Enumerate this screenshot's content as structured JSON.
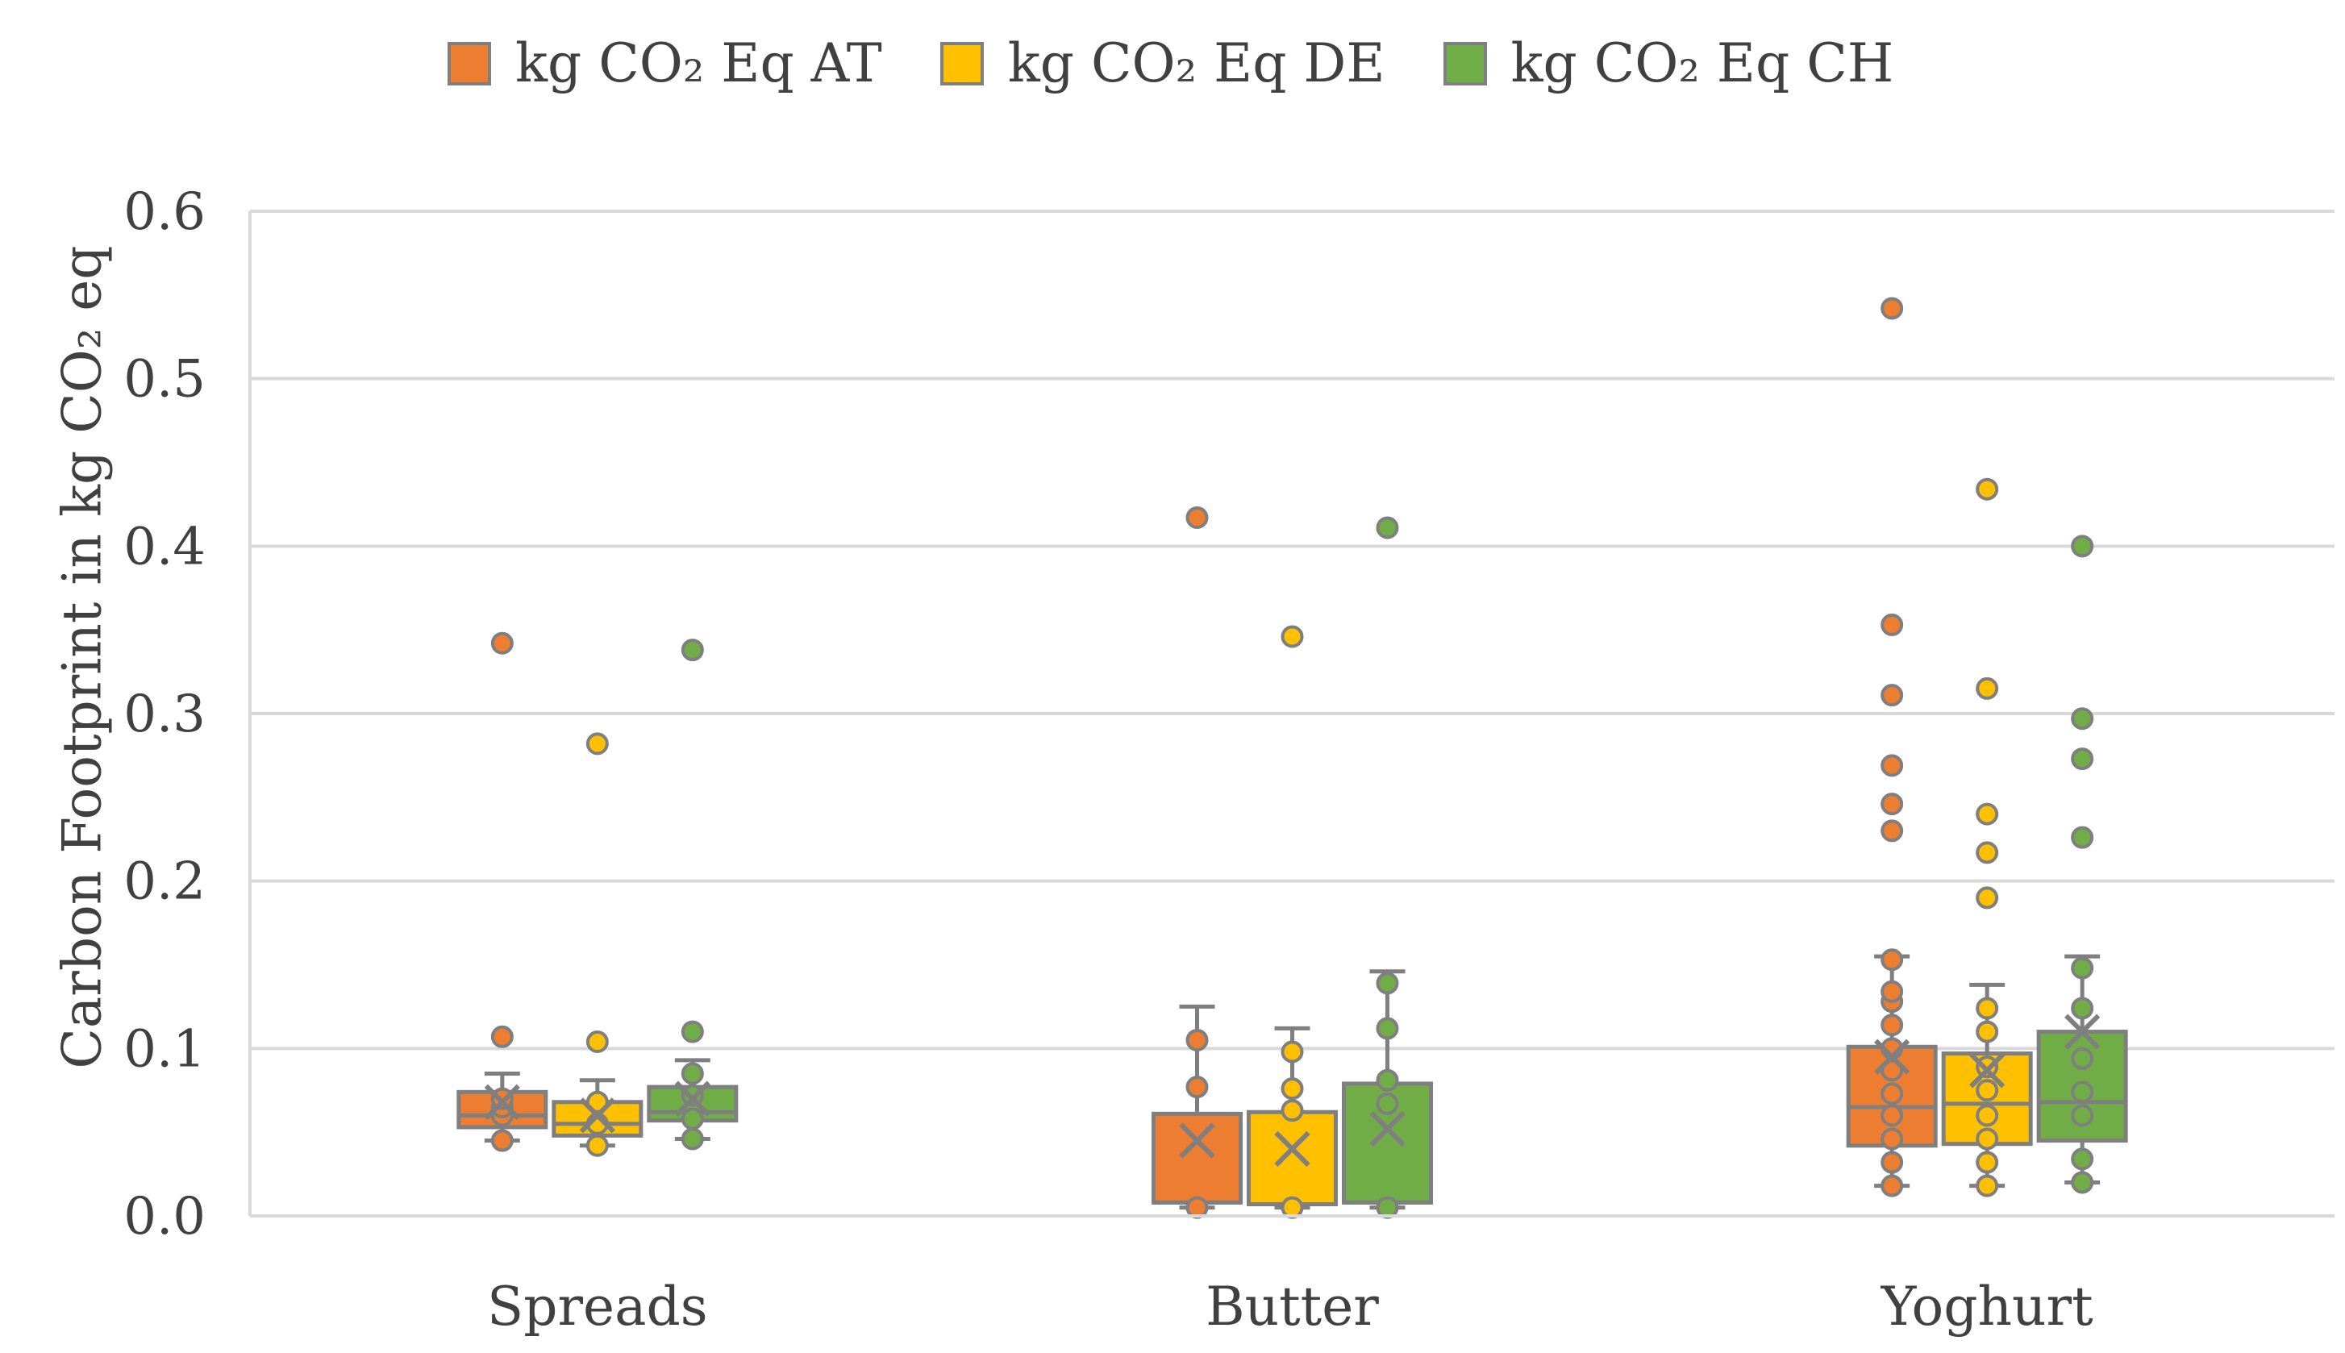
{
  "chart_data": {
    "type": "box",
    "title": "",
    "xlabel": "",
    "ylabel": "Carbon Footprint in kg CO₂ eq",
    "ylim": [
      0,
      0.6
    ],
    "yticks": [
      0.0,
      0.1,
      0.2,
      0.3,
      0.4,
      0.5,
      0.6
    ],
    "ytick_labels": [
      "0.0",
      "0.1",
      "0.2",
      "0.3",
      "0.4",
      "0.5",
      "0.6"
    ],
    "grid": true,
    "legend_position": "top",
    "categories": [
      "Spreads",
      "Butter",
      "Yoghurt"
    ],
    "series": [
      {
        "name": "kg CO₂ Eq AT",
        "color": "#ED7D31",
        "boxes": [
          {
            "whisker_low": 0.045,
            "q1": 0.053,
            "median": 0.06,
            "q3": 0.074,
            "whisker_high": 0.085,
            "mean": 0.068,
            "points": [
              0.045,
              0.06,
              0.065,
              0.07,
              0.107,
              0.342
            ]
          },
          {
            "whisker_low": 0.005,
            "q1": 0.008,
            "median": 0.008,
            "q3": 0.061,
            "whisker_high": 0.125,
            "mean": 0.045,
            "points": [
              0.005,
              0.077,
              0.105,
              0.417
            ]
          },
          {
            "whisker_low": 0.018,
            "q1": 0.042,
            "median": 0.065,
            "q3": 0.101,
            "whisker_high": 0.155,
            "mean": 0.095,
            "points": [
              0.018,
              0.032,
              0.046,
              0.06,
              0.073,
              0.087,
              0.1,
              0.114,
              0.128,
              0.134,
              0.153,
              0.23,
              0.246,
              0.269,
              0.311,
              0.353,
              0.542
            ]
          }
        ]
      },
      {
        "name": "kg CO₂ Eq DE",
        "color": "#FFC000",
        "boxes": [
          {
            "whisker_low": 0.042,
            "q1": 0.048,
            "median": 0.055,
            "q3": 0.068,
            "whisker_high": 0.081,
            "mean": 0.06,
            "points": [
              0.042,
              0.055,
              0.068,
              0.104,
              0.282
            ]
          },
          {
            "whisker_low": 0.005,
            "q1": 0.007,
            "median": 0.007,
            "q3": 0.062,
            "whisker_high": 0.112,
            "mean": 0.04,
            "points": [
              0.005,
              0.063,
              0.076,
              0.098,
              0.346
            ]
          },
          {
            "whisker_low": 0.018,
            "q1": 0.043,
            "median": 0.067,
            "q3": 0.097,
            "whisker_high": 0.138,
            "mean": 0.087,
            "points": [
              0.018,
              0.032,
              0.046,
              0.06,
              0.075,
              0.089,
              0.11,
              0.124,
              0.19,
              0.217,
              0.24,
              0.315,
              0.434
            ]
          }
        ]
      },
      {
        "name": "kg CO₂ Eq CH",
        "color": "#70AD47",
        "boxes": [
          {
            "whisker_low": 0.046,
            "q1": 0.057,
            "median": 0.062,
            "q3": 0.077,
            "whisker_high": 0.093,
            "mean": 0.07,
            "points": [
              0.046,
              0.058,
              0.072,
              0.085,
              0.11,
              0.338
            ]
          },
          {
            "whisker_low": 0.005,
            "q1": 0.008,
            "median": 0.008,
            "q3": 0.079,
            "whisker_high": 0.146,
            "mean": 0.052,
            "points": [
              0.005,
              0.067,
              0.081,
              0.112,
              0.139,
              0.411
            ]
          },
          {
            "whisker_low": 0.02,
            "q1": 0.045,
            "median": 0.068,
            "q3": 0.11,
            "whisker_high": 0.155,
            "mean": 0.11,
            "points": [
              0.02,
              0.034,
              0.06,
              0.074,
              0.094,
              0.124,
              0.148,
              0.226,
              0.273,
              0.297,
              0.4
            ]
          }
        ]
      }
    ]
  }
}
